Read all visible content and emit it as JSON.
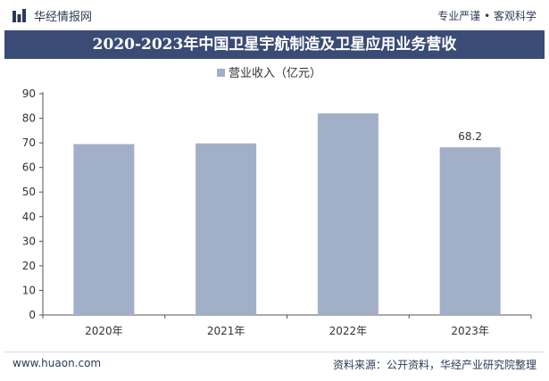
{
  "header": {
    "site_name": "华经情报网",
    "tagline": "专业严谨 • 客观科学",
    "logo_icon": "bar-logo-icon"
  },
  "title": "2020-2023年中国卫星宇航制造及卫星应用业务营收",
  "footer": {
    "url": "www.huaon.com",
    "source": "资料来源：公开资料，华经产业研究院整理"
  },
  "colors": {
    "bar": "#a2afc9",
    "title_band": "#3a4b75",
    "text": "#2d3a57"
  },
  "chart_data": {
    "type": "bar",
    "categories": [
      "2020年",
      "2021年",
      "2022年",
      "2023年"
    ],
    "series": [
      {
        "name": "营业收入（亿元）",
        "values": [
          69.5,
          69.8,
          82,
          68.2
        ]
      }
    ],
    "data_labels": [
      null,
      null,
      null,
      "68.2"
    ],
    "ylim": [
      0,
      90
    ],
    "yticks": [
      0,
      10,
      20,
      30,
      40,
      50,
      60,
      70,
      80,
      90
    ],
    "legend_position": "top-center",
    "grid": false
  }
}
